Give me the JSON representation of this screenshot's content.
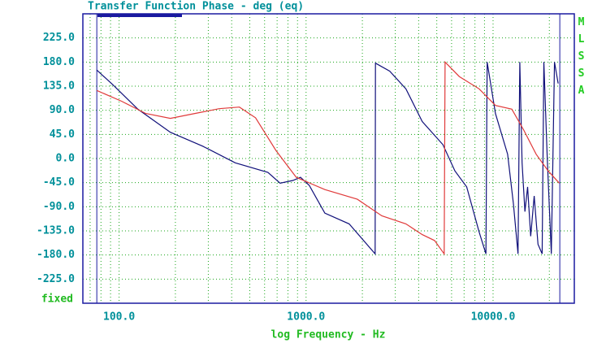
{
  "chart_data": {
    "type": "line",
    "title": "Transfer Function Phase - deg (eq)",
    "x_label": "log Frequency - Hz",
    "mode_label": "fixed",
    "brand": "MLSSA",
    "log_x": true,
    "grid": true,
    "xlim": [
      64,
      27200
    ],
    "ylim": [
      -270,
      270
    ],
    "xticks": [
      {
        "value": 100,
        "label": "100.0"
      },
      {
        "value": 1000,
        "label": "1000.0"
      },
      {
        "value": 10000,
        "label": "10000.0"
      }
    ],
    "xminorticks": [
      70,
      80,
      90,
      200,
      300,
      400,
      500,
      600,
      700,
      800,
      900,
      2000,
      3000,
      4000,
      5000,
      6000,
      7000,
      8000,
      9000,
      20000
    ],
    "yticks": [
      {
        "value": 225,
        "label": "225.0"
      },
      {
        "value": 180,
        "label": "180.0"
      },
      {
        "value": 135,
        "label": "135.0"
      },
      {
        "value": 90,
        "label": "90.0"
      },
      {
        "value": 45,
        "label": "45.0"
      },
      {
        "value": 0,
        "label": "0.0"
      },
      {
        "value": -45,
        "label": "-45.0"
      },
      {
        "value": -90,
        "label": "-90.0"
      },
      {
        "value": -135,
        "label": "-135.0"
      },
      {
        "value": -180,
        "label": "-180.0"
      },
      {
        "value": -225,
        "label": "-225.0"
      }
    ],
    "markers": [
      76,
      22750
    ],
    "marker_color": "#1a1aa0",
    "series": [
      {
        "color": "#10107a",
        "x": [
          76,
          93,
          126,
          188,
          280,
          418,
          625,
          726,
          850,
          933,
          1040,
          1260,
          1700,
          2340,
          2350,
          2800,
          3420,
          4180,
          5390,
          6250,
          7230,
          8420,
          9160,
          9300,
          10300,
          11960,
          12850,
          13600,
          13900,
          14300,
          14800,
          15300,
          15900,
          16600,
          17400,
          18300,
          18700,
          19500,
          20500,
          21300,
          22300
        ],
        "values": [
          165,
          137,
          92,
          49,
          23,
          -8,
          -26,
          -46,
          -41,
          -35,
          -50,
          -102,
          -122,
          -178,
          178,
          163,
          130,
          69,
          26,
          -23,
          -53,
          -137,
          -178,
          180,
          84,
          8,
          -84,
          -178,
          180,
          -8,
          -99,
          -53,
          -145,
          -70,
          -160,
          -178,
          180,
          0,
          -178,
          180,
          140
        ]
      },
      {
        "color": "#e03a3a",
        "x": [
          76,
          103,
          139,
          188,
          254,
          343,
          440,
          537,
          690,
          886,
          1260,
          1880,
          2540,
          3420,
          4180,
          4870,
          5480,
          5540,
          6590,
          8420,
          10300,
          12600,
          14600,
          17000,
          19700,
          22600
        ],
        "values": [
          127,
          107,
          84,
          75,
          84,
          93,
          96,
          76,
          15,
          -35,
          -58,
          -76,
          -107,
          -122,
          -142,
          -153,
          -178,
          180,
          153,
          130,
          99,
          92,
          53,
          8,
          -23,
          -46
        ]
      }
    ]
  }
}
